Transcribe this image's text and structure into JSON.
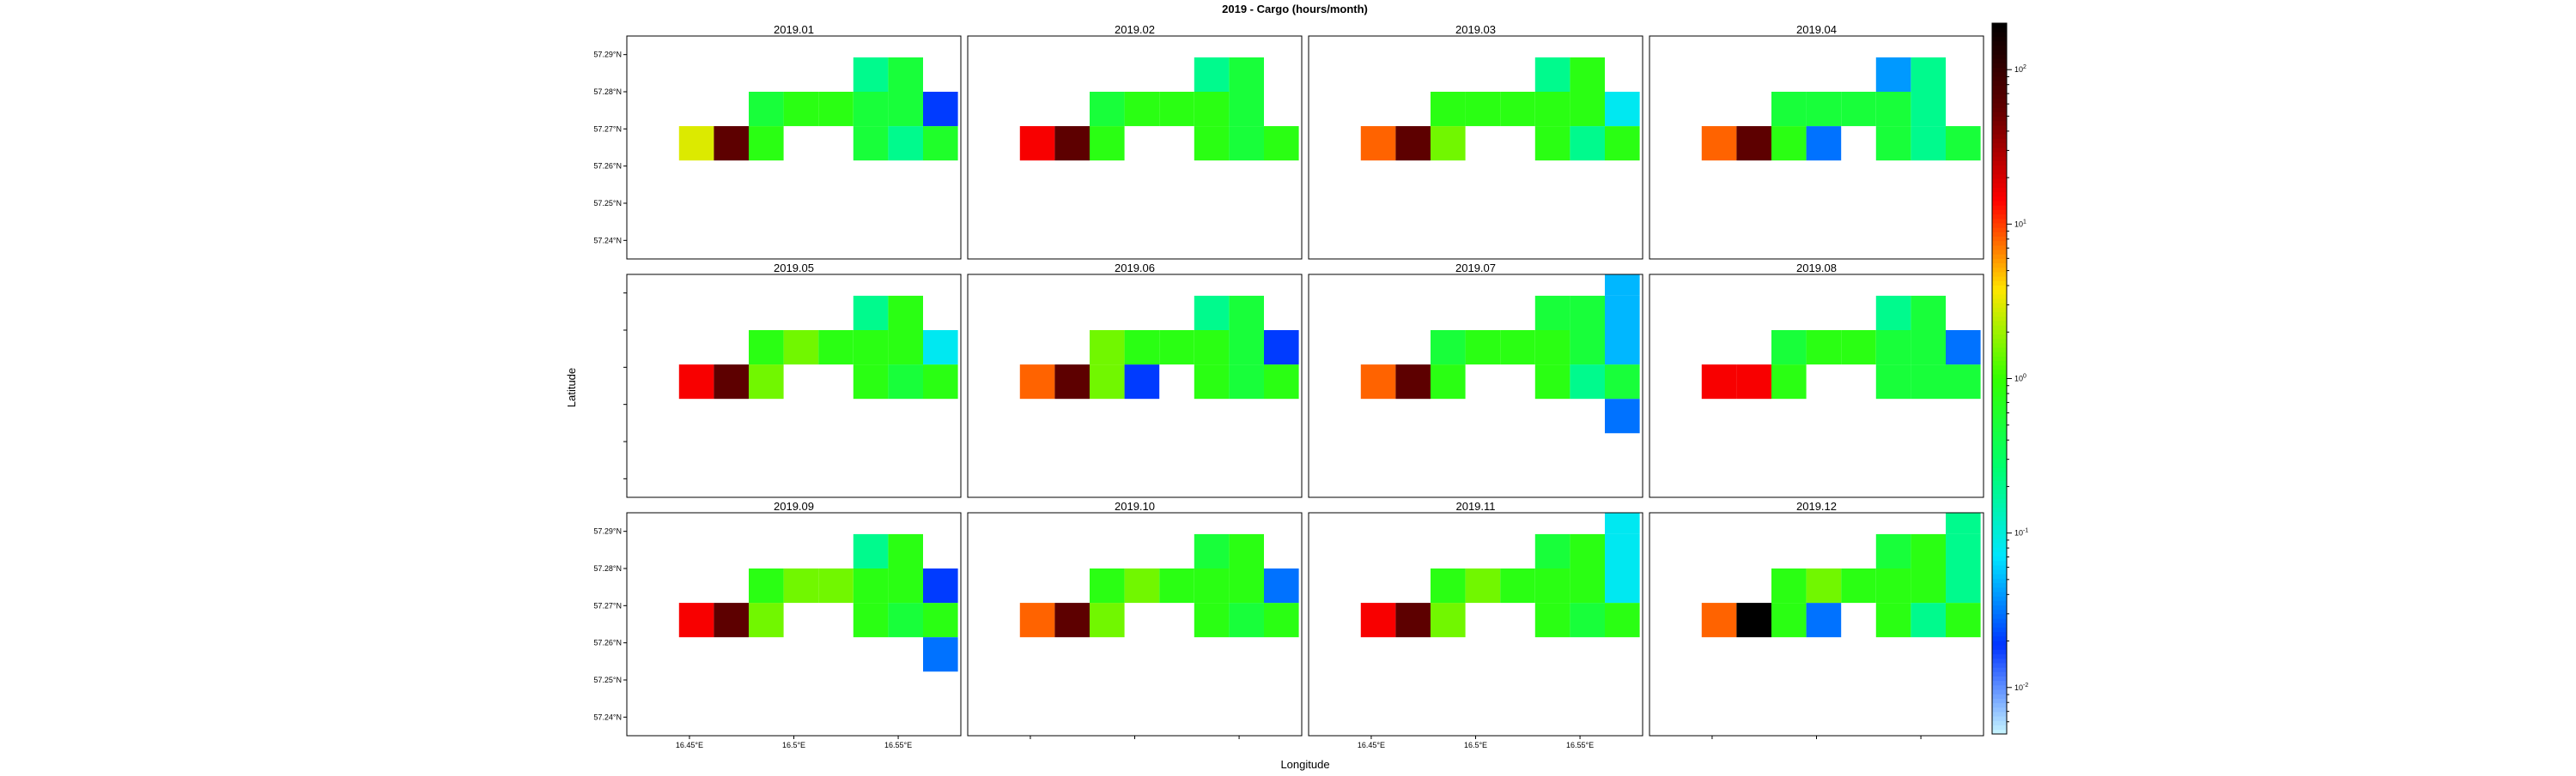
{
  "chart_data": {
    "type": "heatmap",
    "title": "2019 - Cargo (hours/month)",
    "xlabel": "Longitude",
    "ylabel": "Latitude",
    "x_ticks": [
      16.45,
      16.5,
      16.55
    ],
    "x_tick_labels": [
      "16.45°E",
      "16.5°E",
      "16.55°E"
    ],
    "y_ticks": [
      57.24,
      57.25,
      57.26,
      57.27,
      57.28,
      57.29
    ],
    "y_tick_labels": [
      "57.24°N",
      "57.25°N",
      "57.26°N",
      "57.27°N",
      "57.28°N",
      "57.29°N"
    ],
    "xlim": [
      16.42,
      16.58
    ],
    "ylim": [
      57.235,
      57.295
    ],
    "layout": {
      "rows": 3,
      "cols": 4
    },
    "grid": {
      "x0": 16.445,
      "dx": 0.0167,
      "y0": 57.2615,
      "dy": 0.00925,
      "ncols": 8,
      "nrows": 5
    },
    "colorbar": {
      "scale": "log",
      "min": 0.005,
      "max": 200,
      "ticks": [
        0.01,
        0.1,
        1,
        10,
        100
      ],
      "tick_labels": [
        "10^-2",
        "10^-1",
        "10^0",
        "10^1",
        "10^2"
      ],
      "colors": [
        "#c8f6ff",
        "#0033ff",
        "#00e6ff",
        "#00ff6e",
        "#33ff00",
        "#ffe600",
        "#ff0000",
        "#660000",
        "#000000"
      ]
    },
    "panels": [
      {
        "title": "2019.01",
        "cells": [
          [
            0,
            0,
            3
          ],
          [
            1,
            0,
            60
          ],
          [
            2,
            0,
            0.8
          ],
          [
            5,
            0,
            0.5
          ],
          [
            6,
            0,
            0.2
          ],
          [
            7,
            0,
            0.6
          ],
          [
            2,
            1,
            0.5
          ],
          [
            3,
            1,
            0.8
          ],
          [
            4,
            1,
            0.8
          ],
          [
            5,
            1,
            0.5
          ],
          [
            6,
            1,
            0.5
          ],
          [
            7,
            1,
            0.02
          ],
          [
            5,
            2,
            0.2
          ],
          [
            6,
            2,
            0.5
          ]
        ]
      },
      {
        "title": "2019.02",
        "cells": [
          [
            0,
            0,
            15
          ],
          [
            1,
            0,
            60
          ],
          [
            2,
            0,
            0.8
          ],
          [
            5,
            0,
            0.8
          ],
          [
            6,
            0,
            0.5
          ],
          [
            7,
            0,
            0.8
          ],
          [
            2,
            1,
            0.5
          ],
          [
            3,
            1,
            0.8
          ],
          [
            4,
            1,
            0.8
          ],
          [
            5,
            1,
            0.8
          ],
          [
            6,
            1,
            0.5
          ],
          [
            5,
            2,
            0.2
          ],
          [
            6,
            2,
            0.5
          ]
        ]
      },
      {
        "title": "2019.03",
        "cells": [
          [
            0,
            0,
            8
          ],
          [
            1,
            0,
            60
          ],
          [
            2,
            0,
            1.5
          ],
          [
            5,
            0,
            0.8
          ],
          [
            6,
            0,
            0.2
          ],
          [
            7,
            0,
            0.8
          ],
          [
            2,
            1,
            0.8
          ],
          [
            3,
            1,
            0.8
          ],
          [
            4,
            1,
            0.8
          ],
          [
            5,
            1,
            0.8
          ],
          [
            6,
            1,
            0.8
          ],
          [
            7,
            1,
            0.08
          ],
          [
            5,
            2,
            0.2
          ],
          [
            6,
            2,
            0.8
          ]
        ]
      },
      {
        "title": "2019.04",
        "cells": [
          [
            0,
            0,
            8
          ],
          [
            1,
            0,
            60
          ],
          [
            2,
            0,
            0.8
          ],
          [
            3,
            0,
            0.03
          ],
          [
            5,
            0,
            0.5
          ],
          [
            6,
            0,
            0.2
          ],
          [
            7,
            0,
            0.5
          ],
          [
            2,
            1,
            0.5
          ],
          [
            3,
            1,
            0.5
          ],
          [
            4,
            1,
            0.5
          ],
          [
            5,
            1,
            0.5
          ],
          [
            6,
            1,
            0.2
          ],
          [
            5,
            2,
            0.04
          ],
          [
            6,
            2,
            0.2
          ]
        ]
      },
      {
        "title": "2019.05",
        "cells": [
          [
            0,
            0,
            15
          ],
          [
            1,
            0,
            60
          ],
          [
            2,
            0,
            1.5
          ],
          [
            5,
            0,
            0.8
          ],
          [
            6,
            0,
            0.5
          ],
          [
            7,
            0,
            0.8
          ],
          [
            2,
            1,
            0.8
          ],
          [
            3,
            1,
            1.5
          ],
          [
            4,
            1,
            0.8
          ],
          [
            5,
            1,
            0.8
          ],
          [
            6,
            1,
            0.8
          ],
          [
            7,
            1,
            0.08
          ],
          [
            5,
            2,
            0.2
          ],
          [
            6,
            2,
            0.8
          ]
        ]
      },
      {
        "title": "2019.06",
        "cells": [
          [
            0,
            0,
            8
          ],
          [
            1,
            0,
            60
          ],
          [
            2,
            0,
            1.5
          ],
          [
            3,
            0,
            0.02
          ],
          [
            5,
            0,
            0.8
          ],
          [
            6,
            0,
            0.5
          ],
          [
            7,
            0,
            0.8
          ],
          [
            2,
            1,
            1.5
          ],
          [
            3,
            1,
            0.8
          ],
          [
            4,
            1,
            0.8
          ],
          [
            5,
            1,
            0.8
          ],
          [
            6,
            1,
            0.5
          ],
          [
            7,
            1,
            0.02
          ],
          [
            5,
            2,
            0.2
          ],
          [
            6,
            2,
            0.5
          ]
        ]
      },
      {
        "title": "2019.07",
        "cells": [
          [
            0,
            0,
            8
          ],
          [
            1,
            0,
            60
          ],
          [
            2,
            0,
            0.8
          ],
          [
            5,
            0,
            0.8
          ],
          [
            6,
            0,
            0.2
          ],
          [
            7,
            0,
            0.5
          ],
          [
            7,
            -1,
            0.03
          ],
          [
            2,
            1,
            0.5
          ],
          [
            3,
            1,
            0.8
          ],
          [
            4,
            1,
            0.8
          ],
          [
            5,
            1,
            0.8
          ],
          [
            6,
            1,
            0.5
          ],
          [
            7,
            1,
            0.05
          ],
          [
            5,
            2,
            0.5
          ],
          [
            6,
            2,
            0.5
          ],
          [
            7,
            2,
            0.05
          ],
          [
            7,
            3,
            0.05
          ]
        ]
      },
      {
        "title": "2019.08",
        "cells": [
          [
            0,
            0,
            15
          ],
          [
            1,
            0,
            15
          ],
          [
            2,
            0,
            0.8
          ],
          [
            5,
            0,
            0.5
          ],
          [
            6,
            0,
            0.5
          ],
          [
            7,
            0,
            0.5
          ],
          [
            2,
            1,
            0.5
          ],
          [
            3,
            1,
            0.8
          ],
          [
            4,
            1,
            0.8
          ],
          [
            5,
            1,
            0.5
          ],
          [
            6,
            1,
            0.5
          ],
          [
            7,
            1,
            0.03
          ],
          [
            5,
            2,
            0.2
          ],
          [
            6,
            2,
            0.5
          ]
        ]
      },
      {
        "title": "2019.09",
        "cells": [
          [
            0,
            0,
            15
          ],
          [
            1,
            0,
            60
          ],
          [
            2,
            0,
            1.5
          ],
          [
            5,
            0,
            0.8
          ],
          [
            6,
            0,
            0.5
          ],
          [
            7,
            0,
            0.8
          ],
          [
            7,
            -1,
            0.03
          ],
          [
            2,
            1,
            0.8
          ],
          [
            3,
            1,
            1.5
          ],
          [
            4,
            1,
            1.5
          ],
          [
            5,
            1,
            0.8
          ],
          [
            6,
            1,
            0.8
          ],
          [
            7,
            1,
            0.02
          ],
          [
            5,
            2,
            0.2
          ],
          [
            6,
            2,
            0.8
          ]
        ]
      },
      {
        "title": "2019.10",
        "cells": [
          [
            0,
            0,
            8
          ],
          [
            1,
            0,
            60
          ],
          [
            2,
            0,
            1.5
          ],
          [
            5,
            0,
            0.8
          ],
          [
            6,
            0,
            0.5
          ],
          [
            7,
            0,
            0.8
          ],
          [
            2,
            1,
            0.8
          ],
          [
            3,
            1,
            1.5
          ],
          [
            4,
            1,
            0.8
          ],
          [
            5,
            1,
            0.8
          ],
          [
            6,
            1,
            0.8
          ],
          [
            7,
            1,
            0.03
          ],
          [
            5,
            2,
            0.5
          ],
          [
            6,
            2,
            0.8
          ]
        ]
      },
      {
        "title": "2019.11",
        "cells": [
          [
            0,
            0,
            15
          ],
          [
            1,
            0,
            60
          ],
          [
            2,
            0,
            1.5
          ],
          [
            5,
            0,
            0.8
          ],
          [
            6,
            0,
            0.5
          ],
          [
            7,
            0,
            0.8
          ],
          [
            2,
            1,
            0.8
          ],
          [
            3,
            1,
            1.5
          ],
          [
            4,
            1,
            0.8
          ],
          [
            5,
            1,
            0.8
          ],
          [
            6,
            1,
            0.8
          ],
          [
            7,
            1,
            0.08
          ],
          [
            5,
            2,
            0.5
          ],
          [
            6,
            2,
            0.8
          ],
          [
            7,
            2,
            0.08
          ],
          [
            7,
            3,
            0.08
          ]
        ]
      },
      {
        "title": "2019.12",
        "cells": [
          [
            0,
            0,
            8
          ],
          [
            1,
            0,
            200
          ],
          [
            2,
            0,
            0.8
          ],
          [
            3,
            0,
            0.03
          ],
          [
            5,
            0,
            0.8
          ],
          [
            6,
            0,
            0.2
          ],
          [
            7,
            0,
            0.8
          ],
          [
            2,
            1,
            0.8
          ],
          [
            3,
            1,
            1.5
          ],
          [
            4,
            1,
            0.8
          ],
          [
            5,
            1,
            0.8
          ],
          [
            6,
            1,
            0.8
          ],
          [
            7,
            1,
            0.2
          ],
          [
            5,
            2,
            0.5
          ],
          [
            6,
            2,
            0.8
          ],
          [
            7,
            2,
            0.2
          ],
          [
            7,
            3,
            0.2
          ]
        ]
      }
    ]
  }
}
